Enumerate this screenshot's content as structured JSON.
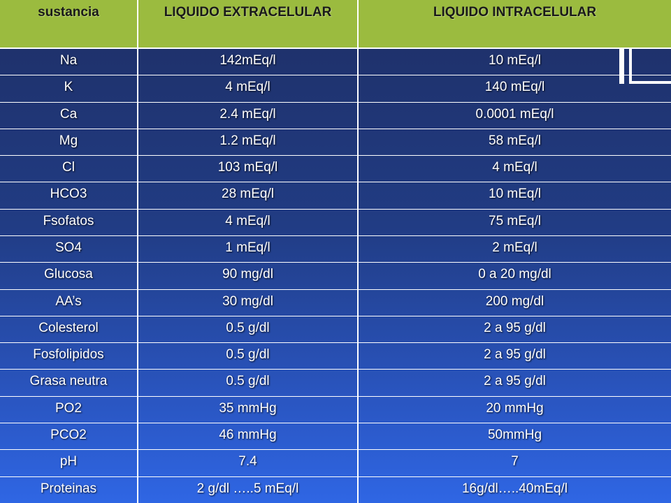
{
  "table": {
    "headers": [
      "sustancia",
      "LIQUIDO EXTRACELULAR",
      "LIQUIDO INTRACELULAR"
    ],
    "rows": [
      [
        "Na",
        "142mEq/l",
        "10 mEq/l"
      ],
      [
        "K",
        "4 mEq/l",
        "140 mEq/l"
      ],
      [
        "Ca",
        "2.4 mEq/l",
        "0.0001 mEq/l"
      ],
      [
        "Mg",
        "1.2 mEq/l",
        "58 mEq/l"
      ],
      [
        "Cl",
        "103 mEq/l",
        "4 mEq/l"
      ],
      [
        "HCO3",
        "28 mEq/l",
        "10 mEq/l"
      ],
      [
        "Fsofatos",
        "4 mEq/l",
        "75 mEq/l"
      ],
      [
        "SO4",
        "1 mEq/l",
        "2 mEq/l"
      ],
      [
        "Glucosa",
        "90 mg/dl",
        "0 a 20 mg/dl"
      ],
      [
        "AA’s",
        "30 mg/dl",
        "200 mg/dl"
      ],
      [
        "Colesterol",
        "0.5 g/dl",
        "2 a 95 g/dl"
      ],
      [
        "Fosfolipidos",
        "0.5 g/dl",
        "2 a 95 g/dl"
      ],
      [
        "Grasa neutra",
        "0.5 g/dl",
        "2 a 95 g/dl"
      ],
      [
        "PO2",
        "35 mmHg",
        "20 mmHg"
      ],
      [
        "PCO2",
        "46 mmHg",
        "50mmHg"
      ],
      [
        "pH",
        "7.4",
        "7"
      ],
      [
        "Proteinas",
        "2 g/dl …..5 mEq/l",
        "16g/dl…..40mEq/l"
      ]
    ]
  },
  "colors": {
    "header_background": "#9bbb3f",
    "body_top": "#1e2f66",
    "body_bottom": "#2f66e4",
    "grid_lines": "#ffffff"
  }
}
